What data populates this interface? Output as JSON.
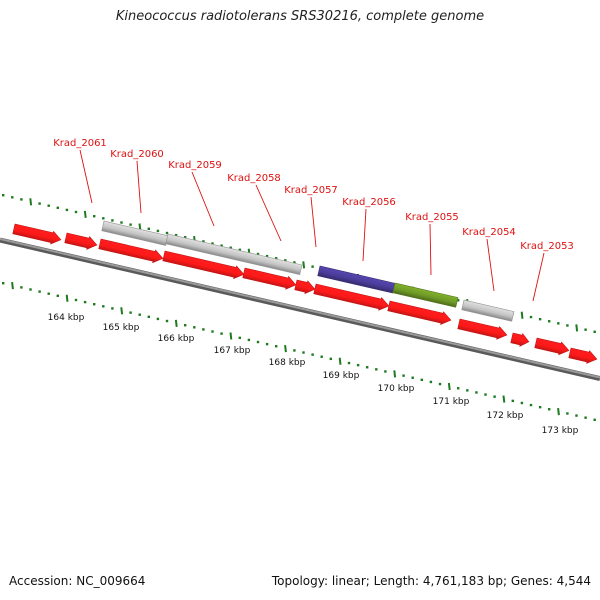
{
  "title": "Kineococcus radiotolerans SRS30216, complete genome",
  "footer": {
    "accession": "Accession: NC_009664",
    "summary": "Topology: linear; Length: 4,761,183 bp; Genes: 4,544"
  },
  "colors": {
    "forward_gene": "#ff1a1a",
    "hypothetical_gene": "#c4c4c4",
    "highlight_gene_1": "#4b3d99",
    "highlight_gene_2": "#6f9a26",
    "label": "#dd1111",
    "tick": "#1e7a1e",
    "axis": "#808080"
  },
  "chart_data": {
    "type": "genome-map",
    "scale_labels": [
      "164 kbp",
      "165 kbp",
      "166 kbp",
      "167 kbp",
      "168 kbp",
      "169 kbp",
      "170 kbp",
      "171 kbp",
      "172 kbp",
      "173 kbp"
    ],
    "gene_labels": [
      "Krad_2061",
      "Krad_2060",
      "Krad_2059",
      "Krad_2058",
      "Krad_2057",
      "Krad_2056",
      "Krad_2055",
      "Krad_2054",
      "Krad_2053"
    ]
  }
}
